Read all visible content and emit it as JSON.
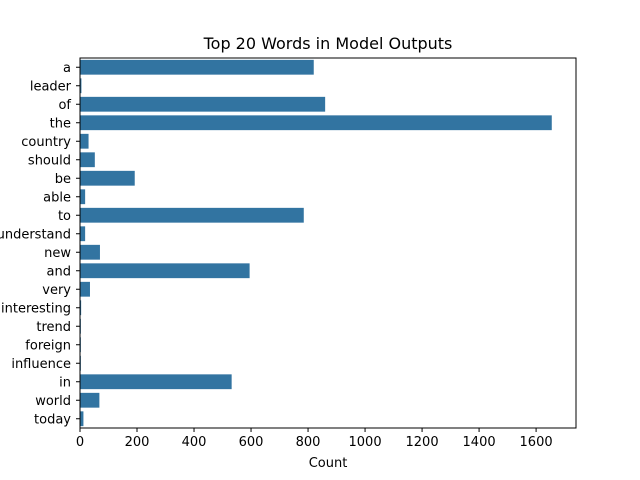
{
  "chart_data": {
    "type": "bar",
    "orientation": "horizontal",
    "title": "Top 20 Words in Model Outputs",
    "xlabel": "Count",
    "ylabel": "",
    "categories": [
      "a",
      "leader",
      "of",
      "the",
      "country",
      "should",
      "be",
      "able",
      "to",
      "understand",
      "new",
      "and",
      "very",
      "interesting",
      "trend",
      "foreign",
      "influence",
      "in",
      "world",
      "today"
    ],
    "values": [
      820,
      5,
      860,
      1655,
      30,
      52,
      192,
      18,
      785,
      18,
      70,
      595,
      35,
      4,
      3,
      3,
      3,
      532,
      68,
      12
    ],
    "xlim": [
      0,
      1740
    ],
    "xticks": [
      0,
      200,
      400,
      600,
      800,
      1000,
      1200,
      1400,
      1600
    ],
    "bar_color": "#3274a1",
    "grid": false,
    "legend": "none"
  }
}
